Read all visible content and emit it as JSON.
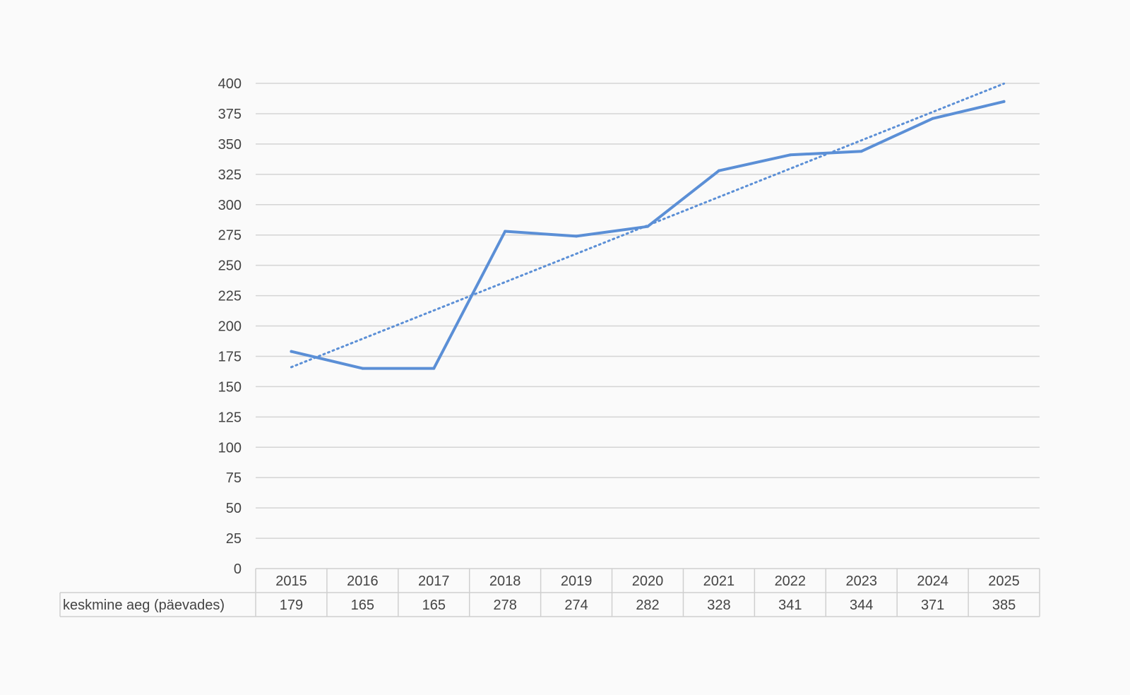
{
  "chart_data": {
    "type": "line",
    "categories": [
      "2015",
      "2016",
      "2017",
      "2018",
      "2019",
      "2020",
      "2021",
      "2022",
      "2023",
      "2024",
      "2025"
    ],
    "series": [
      {
        "name": "keskmine aeg (päevades)",
        "values": [
          179,
          165,
          165,
          278,
          274,
          282,
          328,
          341,
          344,
          371,
          385
        ],
        "color": "#5b8fd6"
      }
    ],
    "trendline": {
      "type": "linear",
      "style": "dotted",
      "color": "#5b8fd6"
    },
    "ylim": [
      0,
      400
    ],
    "yticks": [
      0,
      25,
      50,
      75,
      100,
      125,
      150,
      175,
      200,
      225,
      250,
      275,
      300,
      325,
      350,
      375,
      400
    ],
    "grid": true,
    "legend": "none",
    "data_table": true
  }
}
